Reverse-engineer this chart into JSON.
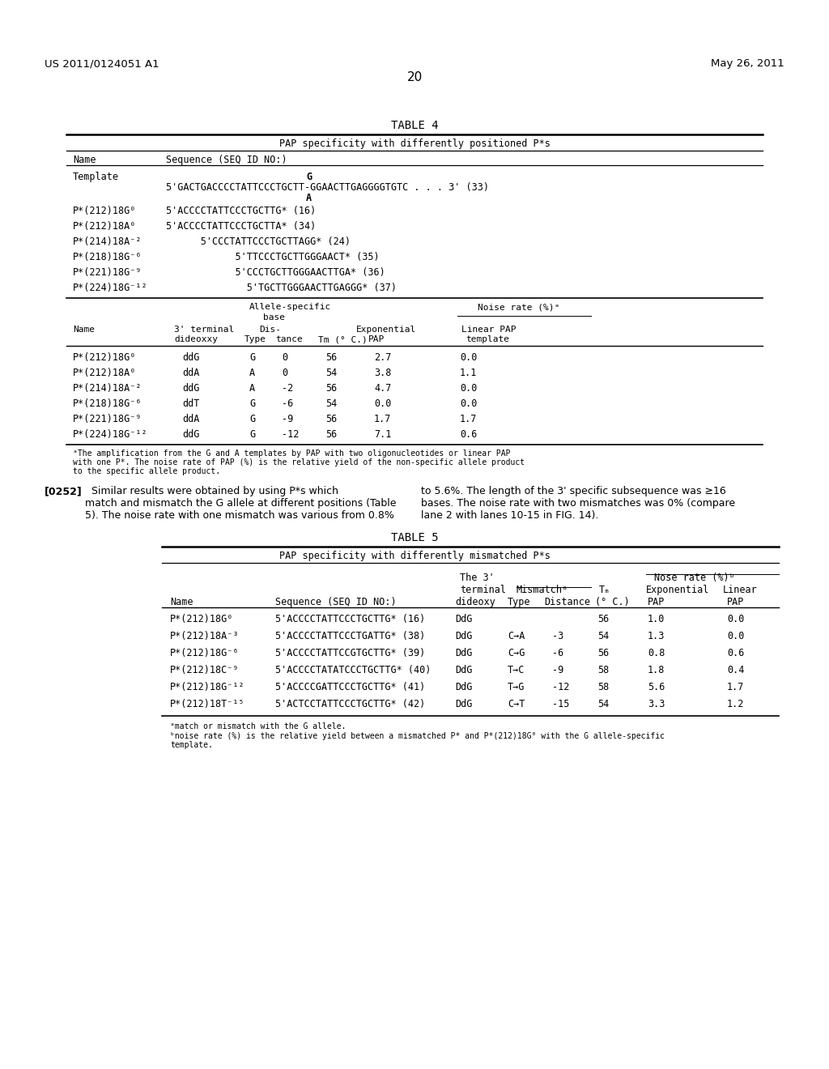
{
  "header_left": "US 2011/0124051 A1",
  "header_right": "May 26, 2011",
  "page_number": "20"
}
